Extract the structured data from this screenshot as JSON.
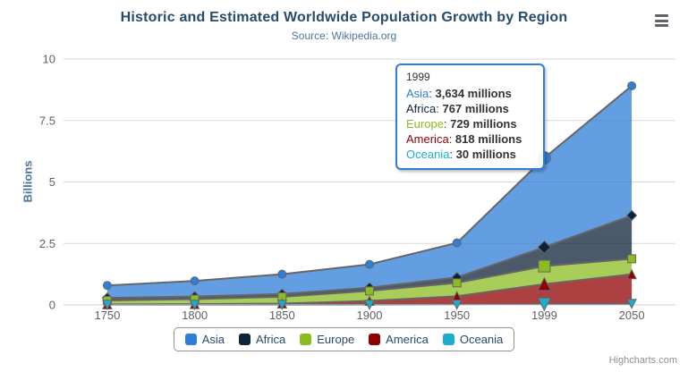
{
  "title": "Historic and Estimated Worldwide Population Growth by Region",
  "subtitle": "Source: Wikipedia.org",
  "credits": "Highcharts.com",
  "icons": {
    "context_menu": "hamburger-menu"
  },
  "chart_data": {
    "type": "area",
    "stacking": "normal",
    "unit": "millions",
    "title": "Historic and Estimated Worldwide Population Growth by Region",
    "subtitle": "Source: Wikipedia.org",
    "categories": [
      "1750",
      "1800",
      "1850",
      "1900",
      "1950",
      "1999",
      "2050"
    ],
    "xlabel": "",
    "ylabel": "Billions",
    "yticks": [
      "0",
      "2.5",
      "5",
      "7.5",
      "10"
    ],
    "ytick_values_billions": [
      0,
      2.5,
      5,
      7.5,
      10
    ],
    "ylim": [
      0,
      10
    ],
    "grid": true,
    "legend_position": "bottom",
    "hover_category_index": 5,
    "series": [
      {
        "name": "Asia",
        "color": "#2f7ed8",
        "marker": "circle",
        "values": [
          502,
          635,
          809,
          947,
          1402,
          3634,
          5268
        ]
      },
      {
        "name": "Africa",
        "color": "#0d233a",
        "marker": "diamond",
        "values": [
          106,
          107,
          111,
          133,
          221,
          767,
          1766
        ]
      },
      {
        "name": "Europe",
        "color": "#8bbc21",
        "marker": "square",
        "values": [
          163,
          203,
          276,
          408,
          547,
          729,
          628
        ]
      },
      {
        "name": "America",
        "color": "#910000",
        "marker": "triangle",
        "values": [
          18,
          31,
          54,
          156,
          339,
          818,
          1201
        ]
      },
      {
        "name": "Oceania",
        "color": "#1aadce",
        "marker": "triangle-down",
        "values": [
          2,
          2,
          2,
          6,
          13,
          30,
          46
        ]
      }
    ],
    "line_color": "#666666",
    "fill_opacity": 0.75,
    "grid_color": "#d8d8d8",
    "axis_line_color": "#c0d0e0",
    "label_color": "#606060"
  },
  "tooltip": {
    "header": "1999",
    "border_color": "#2f7ed8",
    "rows": [
      {
        "series": "Asia",
        "value": "3,634 millions"
      },
      {
        "series": "Africa",
        "value": "767 millions"
      },
      {
        "series": "Europe",
        "value": "729 millions"
      },
      {
        "series": "America",
        "value": "818 millions"
      },
      {
        "series": "Oceania",
        "value": "30 millions"
      }
    ]
  }
}
